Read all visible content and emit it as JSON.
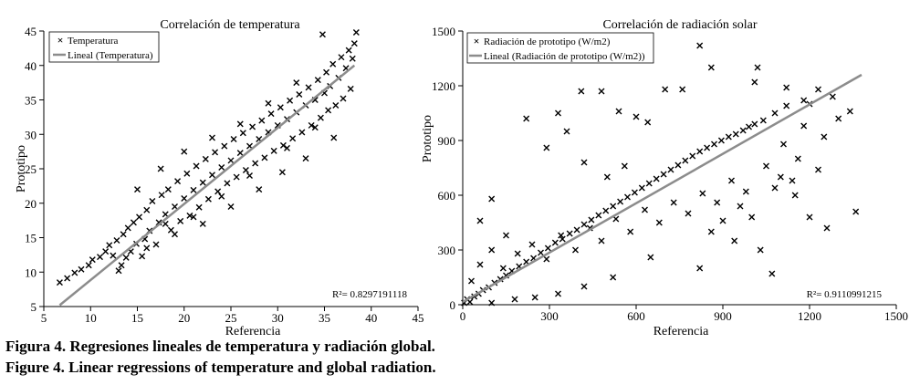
{
  "chart_data": [
    {
      "type": "scatter",
      "title": "Correlación de temperatura",
      "xlabel": "Referencia",
      "ylabel": "Prototipo",
      "xlim": [
        5,
        45
      ],
      "ylim": [
        5,
        45
      ],
      "xticks": [
        "5",
        "10",
        "15",
        "20",
        "25",
        "30",
        "35",
        "40",
        "45"
      ],
      "yticks": [
        "5",
        "10",
        "15",
        "20",
        "25",
        "30",
        "35",
        "40",
        "45"
      ],
      "legend_position": "top-left",
      "marker_color": "#000000",
      "line_color": "#8c8c8c",
      "r2_label": "R²= 0.8297191118",
      "series": [
        {
          "name": "Temperatura",
          "points": [
            [
              6.7,
              8.5
            ],
            [
              7.5,
              9.1
            ],
            [
              8.3,
              9.9
            ],
            [
              9.0,
              10.4
            ],
            [
              9.8,
              11.0
            ],
            [
              10.2,
              11.8
            ],
            [
              11.0,
              12.2
            ],
            [
              11.6,
              13.0
            ],
            [
              12.0,
              13.9
            ],
            [
              12.4,
              12.4
            ],
            [
              12.8,
              14.6
            ],
            [
              13.0,
              10.2
            ],
            [
              13.3,
              11.0
            ],
            [
              13.5,
              15.5
            ],
            [
              13.8,
              12.1
            ],
            [
              14.0,
              16.4
            ],
            [
              14.3,
              13.0
            ],
            [
              14.6,
              17.2
            ],
            [
              14.9,
              14.1
            ],
            [
              15.2,
              18.0
            ],
            [
              15.5,
              12.3
            ],
            [
              15.8,
              14.8
            ],
            [
              16.0,
              19.0
            ],
            [
              16.3,
              16.0
            ],
            [
              16.6,
              20.3
            ],
            [
              17.0,
              14.0
            ],
            [
              17.3,
              17.2
            ],
            [
              17.6,
              21.2
            ],
            [
              18.0,
              18.4
            ],
            [
              18.3,
              22.0
            ],
            [
              18.6,
              16.1
            ],
            [
              19.0,
              19.5
            ],
            [
              19.3,
              23.2
            ],
            [
              19.6,
              17.4
            ],
            [
              20.0,
              20.7
            ],
            [
              20.3,
              24.3
            ],
            [
              20.6,
              18.2
            ],
            [
              21.0,
              21.9
            ],
            [
              21.3,
              25.4
            ],
            [
              21.6,
              19.4
            ],
            [
              22.0,
              23.0
            ],
            [
              22.3,
              26.4
            ],
            [
              22.6,
              20.6
            ],
            [
              23.0,
              24.1
            ],
            [
              23.3,
              27.4
            ],
            [
              23.6,
              21.7
            ],
            [
              24.0,
              25.2
            ],
            [
              24.3,
              28.3
            ],
            [
              24.6,
              22.9
            ],
            [
              25.0,
              26.2
            ],
            [
              25.3,
              29.3
            ],
            [
              25.6,
              23.8
            ],
            [
              26.0,
              27.3
            ],
            [
              26.3,
              30.2
            ],
            [
              26.6,
              24.8
            ],
            [
              27.0,
              28.3
            ],
            [
              27.3,
              31.1
            ],
            [
              27.6,
              25.8
            ],
            [
              28.0,
              29.3
            ],
            [
              28.3,
              32.0
            ],
            [
              28.6,
              26.6
            ],
            [
              29.0,
              30.3
            ],
            [
              29.3,
              33.0
            ],
            [
              29.6,
              27.6
            ],
            [
              30.0,
              31.3
            ],
            [
              30.3,
              33.9
            ],
            [
              30.6,
              28.4
            ],
            [
              31.0,
              32.2
            ],
            [
              31.3,
              34.9
            ],
            [
              31.6,
              29.4
            ],
            [
              32.0,
              33.2
            ],
            [
              32.3,
              35.8
            ],
            [
              32.6,
              30.3
            ],
            [
              33.0,
              34.2
            ],
            [
              33.3,
              36.8
            ],
            [
              33.6,
              31.3
            ],
            [
              34.0,
              35.0
            ],
            [
              34.3,
              37.9
            ],
            [
              34.6,
              32.4
            ],
            [
              35.0,
              36.0
            ],
            [
              35.2,
              39.0
            ],
            [
              35.4,
              33.5
            ],
            [
              35.6,
              37.0
            ],
            [
              35.9,
              40.2
            ],
            [
              36.2,
              34.2
            ],
            [
              36.5,
              38.2
            ],
            [
              36.8,
              41.2
            ],
            [
              37.0,
              35.2
            ],
            [
              37.3,
              39.6
            ],
            [
              37.6,
              42.2
            ],
            [
              37.8,
              36.6
            ],
            [
              38.0,
              41.0
            ],
            [
              38.2,
              43.2
            ],
            [
              38.4,
              44.8
            ],
            [
              34.8,
              44.5
            ],
            [
              36.0,
              29.5
            ],
            [
              33.0,
              26.5
            ],
            [
              30.5,
              24.5
            ],
            [
              28.0,
              22.0
            ],
            [
              25.0,
              19.5
            ],
            [
              22.0,
              17.0
            ],
            [
              19.0,
              15.5
            ],
            [
              16.0,
              13.5
            ],
            [
              23.0,
              29.5
            ],
            [
              26.0,
              31.5
            ],
            [
              20.0,
              27.5
            ],
            [
              17.5,
              25.0
            ],
            [
              15.0,
              22.0
            ],
            [
              29.0,
              34.5
            ],
            [
              32.0,
              37.5
            ],
            [
              24.0,
              21.0
            ],
            [
              27.0,
              24.0
            ],
            [
              21.0,
              18.0
            ],
            [
              18.0,
              17.0
            ],
            [
              31.0,
              28.0
            ],
            [
              34.0,
              31.0
            ]
          ]
        },
        {
          "name": "Lineal (Temperatura)",
          "points": [
            [
              6.7,
              5.2
            ],
            [
              38.2,
              40.0
            ]
          ]
        }
      ]
    },
    {
      "type": "scatter",
      "title": "Correlación de radiación solar",
      "xlabel": "Referencia",
      "ylabel": "Prototipo",
      "xlim": [
        0,
        1500
      ],
      "ylim": [
        0,
        1500
      ],
      "xticks": [
        "0",
        "300",
        "600",
        "900",
        "1200",
        "1500"
      ],
      "yticks": [
        "0",
        "300",
        "600",
        "900",
        "1200",
        "1500"
      ],
      "legend_position": "top-left",
      "marker_color": "#000000",
      "line_color": "#8c8c8c",
      "r2_label": "R²= 0.9110991215",
      "series": [
        {
          "name": "Radiación de prototipo (W/m2)",
          "points": [
            [
              5,
              10
            ],
            [
              15,
              30
            ],
            [
              25,
              15
            ],
            [
              40,
              45
            ],
            [
              55,
              60
            ],
            [
              70,
              80
            ],
            [
              90,
              95
            ],
            [
              110,
              120
            ],
            [
              130,
              140
            ],
            [
              150,
              160
            ],
            [
              170,
              185
            ],
            [
              195,
              210
            ],
            [
              220,
              235
            ],
            [
              245,
              255
            ],
            [
              270,
              285
            ],
            [
              295,
              310
            ],
            [
              320,
              340
            ],
            [
              345,
              360
            ],
            [
              370,
              390
            ],
            [
              395,
              410
            ],
            [
              420,
              440
            ],
            [
              445,
              465
            ],
            [
              470,
              490
            ],
            [
              495,
              515
            ],
            [
              520,
              540
            ],
            [
              545,
              565
            ],
            [
              570,
              590
            ],
            [
              595,
              615
            ],
            [
              620,
              640
            ],
            [
              645,
              665
            ],
            [
              670,
              690
            ],
            [
              695,
              715
            ],
            [
              720,
              740
            ],
            [
              745,
              765
            ],
            [
              770,
              790
            ],
            [
              795,
              815
            ],
            [
              820,
              840
            ],
            [
              845,
              860
            ],
            [
              870,
              880
            ],
            [
              895,
              900
            ],
            [
              920,
              920
            ],
            [
              945,
              935
            ],
            [
              970,
              955
            ],
            [
              990,
              975
            ],
            [
              1010,
              990
            ],
            [
              1040,
              1010
            ],
            [
              1080,
              1050
            ],
            [
              1120,
              1090
            ],
            [
              1180,
              1120
            ],
            [
              1230,
              1180
            ],
            [
              1280,
              1140
            ],
            [
              1340,
              1060
            ],
            [
              30,
              130
            ],
            [
              60,
              220
            ],
            [
              100,
              300
            ],
            [
              140,
              200
            ],
            [
              190,
              280
            ],
            [
              240,
              330
            ],
            [
              290,
              250
            ],
            [
              340,
              380
            ],
            [
              390,
              300
            ],
            [
              440,
              420
            ],
            [
              480,
              350
            ],
            [
              530,
              470
            ],
            [
              580,
              400
            ],
            [
              630,
              520
            ],
            [
              680,
              450
            ],
            [
              730,
              560
            ],
            [
              780,
              500
            ],
            [
              830,
              610
            ],
            [
              880,
              560
            ],
            [
              930,
              680
            ],
            [
              980,
              620
            ],
            [
              1000,
              480
            ],
            [
              1050,
              760
            ],
            [
              1100,
              700
            ],
            [
              1150,
              600
            ],
            [
              1200,
              480
            ],
            [
              1260,
              420
            ],
            [
              1360,
              510
            ],
            [
              1070,
              170
            ],
            [
              820,
              200
            ],
            [
              650,
              260
            ],
            [
              520,
              150
            ],
            [
              420,
              100
            ],
            [
              330,
              60
            ],
            [
              250,
              40
            ],
            [
              180,
              30
            ],
            [
              100,
              10
            ],
            [
              760,
              1180
            ],
            [
              820,
              1420
            ],
            [
              860,
              1300
            ],
            [
              1020,
              1300
            ],
            [
              1010,
              1220
            ],
            [
              1120,
              1190
            ],
            [
              700,
              1180
            ],
            [
              410,
              1170
            ],
            [
              480,
              1170
            ],
            [
              540,
              1060
            ],
            [
              600,
              1030
            ],
            [
              640,
              1000
            ],
            [
              220,
              1020
            ],
            [
              330,
              1050
            ],
            [
              290,
              860
            ],
            [
              360,
              950
            ],
            [
              100,
              580
            ],
            [
              60,
              460
            ],
            [
              150,
              380
            ],
            [
              420,
              780
            ],
            [
              500,
              700
            ],
            [
              560,
              760
            ],
            [
              1200,
              1100
            ],
            [
              1250,
              920
            ],
            [
              1300,
              1020
            ],
            [
              1180,
              980
            ],
            [
              1110,
              880
            ],
            [
              1160,
              800
            ],
            [
              1230,
              740
            ],
            [
              1140,
              680
            ],
            [
              1080,
              640
            ],
            [
              960,
              540
            ],
            [
              900,
              460
            ],
            [
              860,
              400
            ],
            [
              940,
              350
            ],
            [
              1030,
              300
            ]
          ]
        },
        {
          "name": "Lineal (Radiación de prototipo (W/m2))",
          "points": [
            [
              0,
              15
            ],
            [
              1380,
              1260
            ]
          ]
        }
      ]
    }
  ],
  "captions": {
    "es": "Figura 4. Regresiones lineales de temperatura y radiación global.",
    "en": "Figure 4. Linear regressions of temperature and global radiation."
  }
}
